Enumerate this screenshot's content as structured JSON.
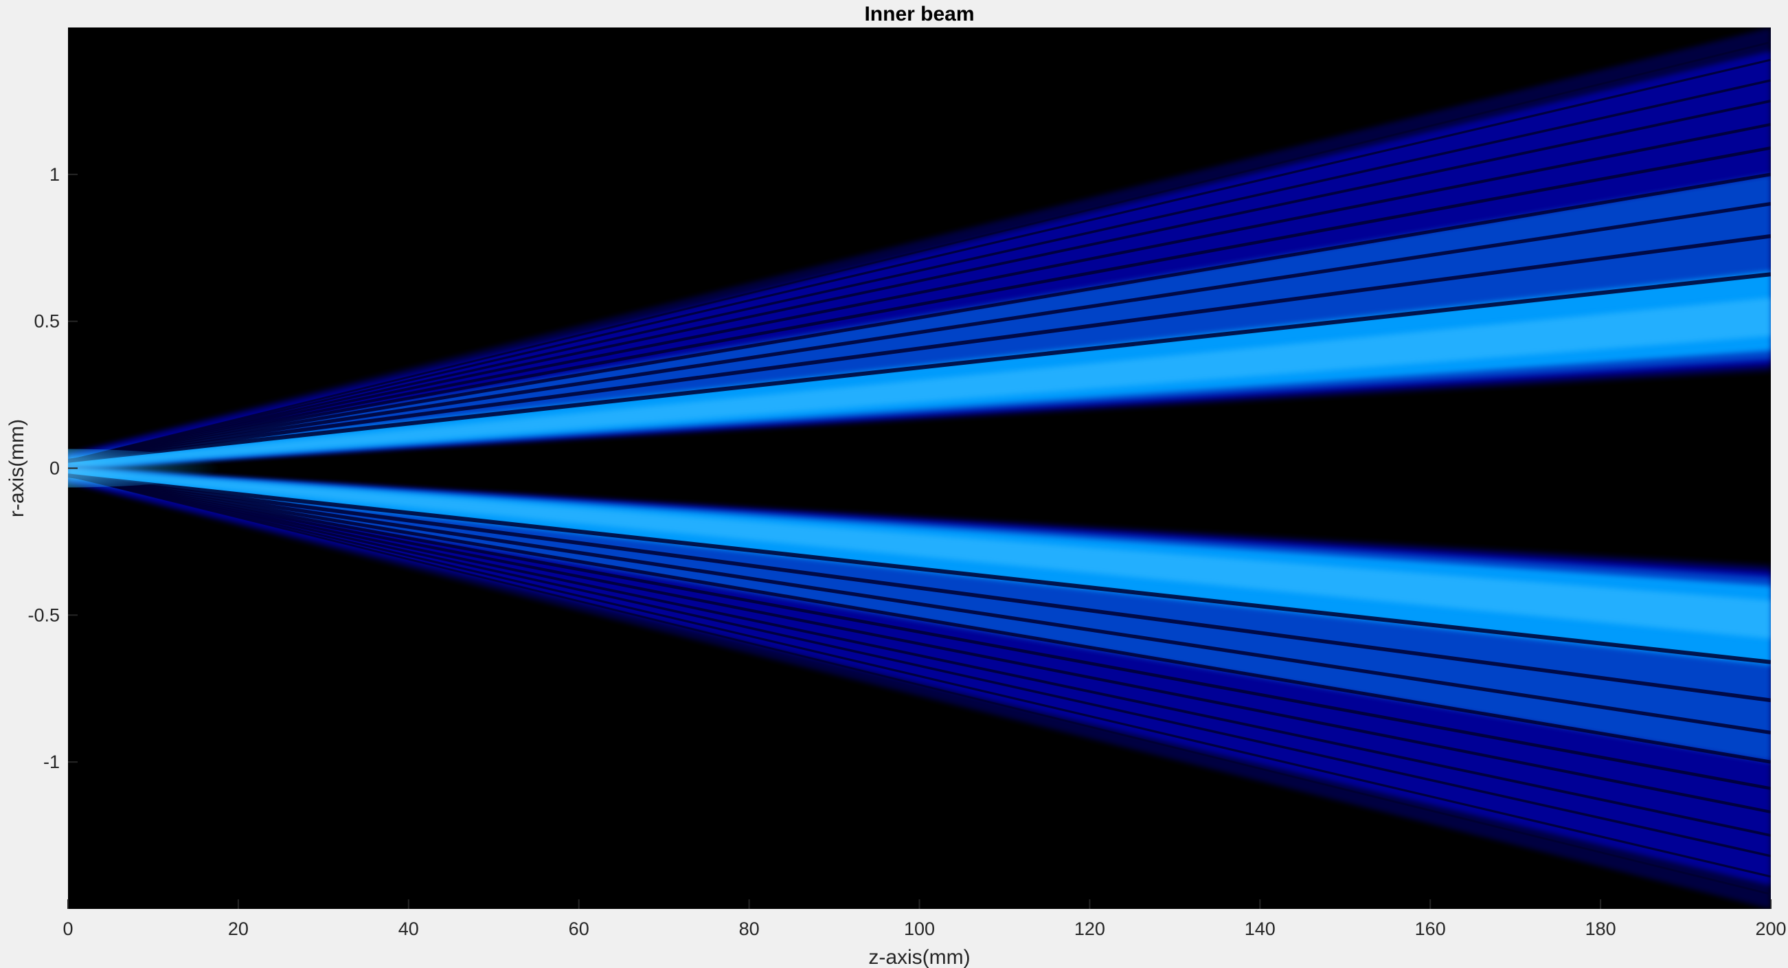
{
  "chart_data": {
    "type": "heatmap",
    "title": "Inner beam",
    "xlabel": "z-axis(mm)",
    "ylabel": "r-axis(mm)",
    "xlim": [
      0,
      200
    ],
    "ylim": [
      -1.5,
      1.5
    ],
    "xticks": [
      0,
      20,
      40,
      60,
      80,
      100,
      120,
      140,
      160,
      180,
      200
    ],
    "yticks": [
      -1,
      -0.5,
      0,
      0.5,
      1
    ],
    "xtick_labels": [
      "0",
      "20",
      "40",
      "60",
      "80",
      "100",
      "120",
      "140",
      "160",
      "180",
      "200"
    ],
    "ytick_labels": [
      "-1",
      "-0.5",
      "0",
      "0.5",
      "1"
    ],
    "grid": false,
    "colormap": [
      "#000000",
      "#000040",
      "#0000a0",
      "#0050d0",
      "#00a0ff",
      "#40c0ff",
      "#e0f4ff"
    ],
    "background_color": "#000000",
    "beam": {
      "symmetric": true,
      "inner_edge_r_at_z_max": 0.35,
      "outer_edge_r_at_z_max": 1.5,
      "core_r_at_z_max": 0.5,
      "source_half_width": 0.05,
      "dark_fringe_r_at_z_max": [
        0.66,
        0.79,
        0.9,
        1.0,
        1.09,
        1.17,
        1.25,
        1.32,
        1.39,
        1.45
      ]
    }
  }
}
